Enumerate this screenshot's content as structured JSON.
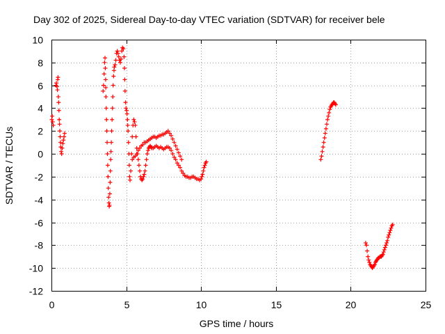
{
  "chart_data": {
    "type": "scatter",
    "title": "Day 302 of 2025, Sidereal Day-to-day VTEC variation (SDTVAR) for receiver bele",
    "xlabel": "GPS time / hours",
    "ylabel": "SDTVAR / TECUs",
    "xlim": [
      0,
      25
    ],
    "ylim": [
      -12,
      10
    ],
    "xticks": [
      0,
      5,
      10,
      15,
      20,
      25
    ],
    "yticks": [
      -12,
      -10,
      -8,
      -6,
      -4,
      -2,
      0,
      2,
      4,
      6,
      8,
      10
    ],
    "xtick_labels": [
      "0",
      "5",
      "10",
      "15",
      "20",
      "25"
    ],
    "ytick_labels": [
      "-12",
      "-10",
      "-8",
      "-6",
      "-4",
      "-2",
      "0",
      "2",
      "4",
      "6",
      "8",
      "10"
    ],
    "grid": true,
    "marker": "+",
    "color": "#ff0000",
    "series": [
      {
        "name": "SDTVAR",
        "points": [
          [
            0.02,
            3.0
          ],
          [
            0.05,
            3.3
          ],
          [
            0.08,
            2.8
          ],
          [
            0.12,
            2.5
          ],
          [
            0.3,
            6.0
          ],
          [
            0.33,
            6.2
          ],
          [
            0.37,
            5.9
          ],
          [
            0.4,
            5.6
          ],
          [
            0.42,
            6.5
          ],
          [
            0.44,
            6.7
          ],
          [
            0.46,
            5.0
          ],
          [
            0.48,
            4.5
          ],
          [
            0.5,
            3.8
          ],
          [
            0.52,
            3.0
          ],
          [
            0.54,
            2.6
          ],
          [
            0.56,
            2.0
          ],
          [
            0.58,
            1.5
          ],
          [
            0.6,
            1.0
          ],
          [
            0.62,
            0.6
          ],
          [
            0.65,
            0.2
          ],
          [
            0.68,
            0.0
          ],
          [
            0.72,
            0.5
          ],
          [
            0.76,
            0.9
          ],
          [
            0.8,
            1.2
          ],
          [
            0.84,
            1.5
          ],
          [
            0.88,
            1.8
          ],
          [
            3.45,
            5.5
          ],
          [
            3.48,
            6.0
          ],
          [
            3.52,
            7.0
          ],
          [
            3.55,
            8.0
          ],
          [
            3.58,
            8.4
          ],
          [
            3.6,
            7.5
          ],
          [
            3.62,
            6.5
          ],
          [
            3.63,
            5.8
          ],
          [
            3.64,
            5.0
          ],
          [
            3.66,
            4.0
          ],
          [
            3.68,
            3.0
          ],
          [
            3.7,
            2.0
          ],
          [
            3.72,
            1.0
          ],
          [
            3.74,
            0.0
          ],
          [
            3.76,
            -1.0
          ],
          [
            3.78,
            -2.0
          ],
          [
            3.8,
            -3.0
          ],
          [
            3.82,
            -3.8
          ],
          [
            3.84,
            -4.3
          ],
          [
            3.86,
            -4.6
          ],
          [
            3.88,
            -4.5
          ],
          [
            3.9,
            -3.5
          ],
          [
            3.92,
            -2.5
          ],
          [
            3.94,
            -1.5
          ],
          [
            3.96,
            -0.5
          ],
          [
            3.98,
            0.2
          ],
          [
            4.0,
            1.0
          ],
          [
            4.02,
            2.0
          ],
          [
            4.05,
            3.0
          ],
          [
            4.08,
            4.0
          ],
          [
            4.1,
            5.0
          ],
          [
            4.12,
            6.0
          ],
          [
            4.15,
            6.8
          ],
          [
            4.18,
            7.3
          ],
          [
            4.2,
            7.6
          ],
          [
            4.25,
            7.8
          ],
          [
            4.3,
            8.2
          ],
          [
            4.35,
            8.8
          ],
          [
            4.4,
            9.0
          ],
          [
            4.45,
            8.8
          ],
          [
            4.5,
            8.5
          ],
          [
            4.55,
            8.2
          ],
          [
            4.6,
            8.0
          ],
          [
            4.65,
            8.3
          ],
          [
            4.7,
            9.0
          ],
          [
            4.75,
            9.3
          ],
          [
            4.8,
            9.2
          ],
          [
            4.85,
            8.5
          ],
          [
            4.88,
            7.5
          ],
          [
            4.9,
            6.5
          ],
          [
            4.92,
            5.5
          ],
          [
            4.95,
            4.5
          ],
          [
            4.98,
            4.0
          ],
          [
            5.02,
            3.8
          ],
          [
            5.05,
            3.5
          ],
          [
            5.08,
            3.0
          ],
          [
            5.1,
            2.5
          ],
          [
            5.12,
            2.0
          ],
          [
            5.15,
            1.0
          ],
          [
            5.18,
            0.0
          ],
          [
            5.2,
            -1.0
          ],
          [
            5.22,
            -2.0
          ],
          [
            5.25,
            -2.3
          ],
          [
            5.3,
            -1.5
          ],
          [
            5.35,
            0.0
          ],
          [
            5.4,
            1.5
          ],
          [
            5.45,
            2.5
          ],
          [
            5.5,
            3.0
          ],
          [
            5.55,
            2.8
          ],
          [
            5.6,
            2.5
          ],
          [
            5.65,
            1.5
          ],
          [
            5.7,
            0.5
          ],
          [
            5.75,
            0.0
          ],
          [
            5.8,
            -0.5
          ],
          [
            5.85,
            -1.0
          ],
          [
            5.9,
            -1.5
          ],
          [
            5.95,
            -2.0
          ],
          [
            6.0,
            -2.2
          ],
          [
            6.05,
            -2.3
          ],
          [
            6.1,
            -2.2
          ],
          [
            6.15,
            -2.0
          ],
          [
            6.2,
            -1.8
          ],
          [
            6.25,
            -1.5
          ],
          [
            6.3,
            -1.0
          ],
          [
            6.35,
            -0.5
          ],
          [
            6.4,
            0.0
          ],
          [
            6.45,
            0.3
          ],
          [
            6.5,
            0.5
          ],
          [
            6.55,
            0.6
          ],
          [
            6.6,
            0.7
          ],
          [
            6.65,
            0.6
          ],
          [
            6.7,
            0.5
          ],
          [
            6.8,
            0.5
          ],
          [
            6.9,
            0.6
          ],
          [
            7.0,
            0.7
          ],
          [
            7.1,
            0.6
          ],
          [
            7.2,
            0.5
          ],
          [
            7.3,
            0.6
          ],
          [
            7.4,
            0.5
          ],
          [
            7.5,
            0.4
          ],
          [
            7.6,
            0.5
          ],
          [
            7.7,
            0.6
          ],
          [
            7.8,
            0.6
          ],
          [
            7.9,
            0.5
          ],
          [
            8.0,
            0.3
          ],
          [
            8.1,
            0.0
          ],
          [
            8.2,
            -0.3
          ],
          [
            8.3,
            -0.5
          ],
          [
            8.4,
            -0.8
          ],
          [
            8.5,
            -1.0
          ],
          [
            8.6,
            -1.2
          ],
          [
            8.7,
            -1.5
          ],
          [
            8.8,
            -1.7
          ],
          [
            8.9,
            -1.9
          ],
          [
            9.0,
            -2.0
          ],
          [
            9.1,
            -2.0
          ],
          [
            9.2,
            -2.1
          ],
          [
            9.3,
            -2.1
          ],
          [
            9.4,
            -2.0
          ],
          [
            9.5,
            -2.0
          ],
          [
            9.6,
            -2.1
          ],
          [
            9.7,
            -2.2
          ],
          [
            9.8,
            -2.2
          ],
          [
            9.9,
            -2.3
          ],
          [
            10.0,
            -2.2
          ],
          [
            10.05,
            -2.0
          ],
          [
            10.1,
            -1.8
          ],
          [
            10.15,
            -1.5
          ],
          [
            10.2,
            -1.2
          ],
          [
            10.25,
            -1.0
          ],
          [
            10.3,
            -0.8
          ],
          [
            10.35,
            -0.7
          ],
          [
            5.4,
            -0.5
          ],
          [
            5.5,
            -0.3
          ],
          [
            5.6,
            -0.2
          ],
          [
            5.7,
            0.0
          ],
          [
            5.8,
            0.3
          ],
          [
            5.9,
            0.5
          ],
          [
            6.0,
            0.7
          ],
          [
            6.1,
            0.8
          ],
          [
            6.2,
            1.0
          ],
          [
            6.3,
            1.0
          ],
          [
            6.4,
            1.1
          ],
          [
            6.5,
            1.2
          ],
          [
            6.6,
            1.3
          ],
          [
            6.7,
            1.4
          ],
          [
            6.8,
            1.5
          ],
          [
            6.9,
            1.5
          ],
          [
            7.0,
            1.4
          ],
          [
            7.1,
            1.5
          ],
          [
            7.2,
            1.6
          ],
          [
            7.3,
            1.6
          ],
          [
            7.4,
            1.7
          ],
          [
            7.5,
            1.7
          ],
          [
            7.6,
            1.8
          ],
          [
            7.7,
            1.9
          ],
          [
            7.8,
            2.0
          ],
          [
            7.9,
            1.8
          ],
          [
            8.0,
            1.6
          ],
          [
            8.1,
            1.3
          ],
          [
            8.2,
            1.0
          ],
          [
            8.3,
            0.7
          ],
          [
            8.4,
            0.4
          ],
          [
            8.5,
            0.1
          ],
          [
            8.6,
            -0.2
          ],
          [
            8.7,
            -0.5
          ],
          [
            18.0,
            -0.5
          ],
          [
            18.05,
            -0.2
          ],
          [
            18.1,
            0.2
          ],
          [
            18.15,
            0.6
          ],
          [
            18.2,
            1.0
          ],
          [
            18.25,
            1.4
          ],
          [
            18.3,
            1.8
          ],
          [
            18.35,
            2.2
          ],
          [
            18.4,
            2.6
          ],
          [
            18.45,
            3.0
          ],
          [
            18.5,
            3.3
          ],
          [
            18.55,
            3.6
          ],
          [
            18.6,
            3.9
          ],
          [
            18.65,
            4.1
          ],
          [
            18.7,
            4.2
          ],
          [
            18.75,
            4.3
          ],
          [
            18.8,
            4.4
          ],
          [
            18.85,
            4.5
          ],
          [
            18.9,
            4.5
          ],
          [
            18.95,
            4.4
          ],
          [
            19.0,
            4.3
          ],
          [
            21.0,
            -7.8
          ],
          [
            21.05,
            -8.0
          ],
          [
            21.1,
            -8.5
          ],
          [
            21.15,
            -9.0
          ],
          [
            21.2,
            -9.3
          ],
          [
            21.25,
            -9.5
          ],
          [
            21.3,
            -9.7
          ],
          [
            21.35,
            -9.8
          ],
          [
            21.4,
            -9.9
          ],
          [
            21.45,
            -10.0
          ],
          [
            21.5,
            -9.9
          ],
          [
            21.55,
            -9.8
          ],
          [
            21.6,
            -9.7
          ],
          [
            21.65,
            -9.5
          ],
          [
            21.7,
            -9.4
          ],
          [
            21.75,
            -9.3
          ],
          [
            21.8,
            -9.2
          ],
          [
            21.85,
            -9.1
          ],
          [
            21.9,
            -9.1
          ],
          [
            21.95,
            -9.0
          ],
          [
            22.0,
            -9.0
          ],
          [
            22.05,
            -9.0
          ],
          [
            22.1,
            -8.9
          ],
          [
            22.15,
            -8.8
          ],
          [
            22.2,
            -8.6
          ],
          [
            22.25,
            -8.4
          ],
          [
            22.3,
            -8.2
          ],
          [
            22.35,
            -8.0
          ],
          [
            22.4,
            -7.8
          ],
          [
            22.45,
            -7.6
          ],
          [
            22.5,
            -7.3
          ],
          [
            22.55,
            -7.1
          ],
          [
            22.6,
            -6.9
          ],
          [
            22.65,
            -6.7
          ],
          [
            22.7,
            -6.5
          ],
          [
            22.75,
            -6.3
          ],
          [
            22.8,
            -6.2
          ]
        ]
      }
    ]
  }
}
